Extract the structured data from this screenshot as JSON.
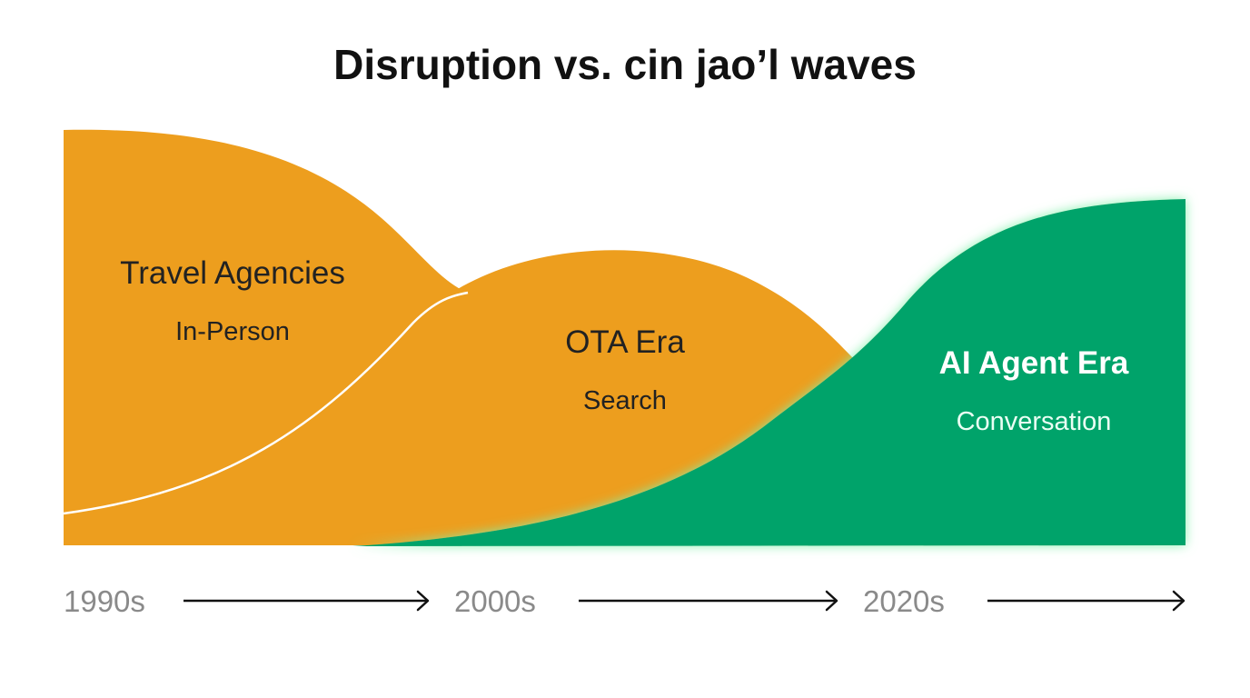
{
  "title": "Disruption vs. cin jao’l waves",
  "colors": {
    "orange": "#ED9E1E",
    "green": "#03A36A",
    "glow": "#7FF0A8",
    "separator": "#FFFFFF",
    "tick_text": "#8A8A8A",
    "arrow": "#111111"
  },
  "eras": [
    {
      "name": "Travel Agencies",
      "mode": "In-Person",
      "color": "orange"
    },
    {
      "name": "OTA Era",
      "mode": "Search",
      "color": "orange"
    },
    {
      "name": "AI Agent Era",
      "mode": "Conversation",
      "color": "green"
    }
  ],
  "timeline": [
    {
      "label": "1990s"
    },
    {
      "label": "2000s"
    },
    {
      "label": "2020s"
    }
  ]
}
